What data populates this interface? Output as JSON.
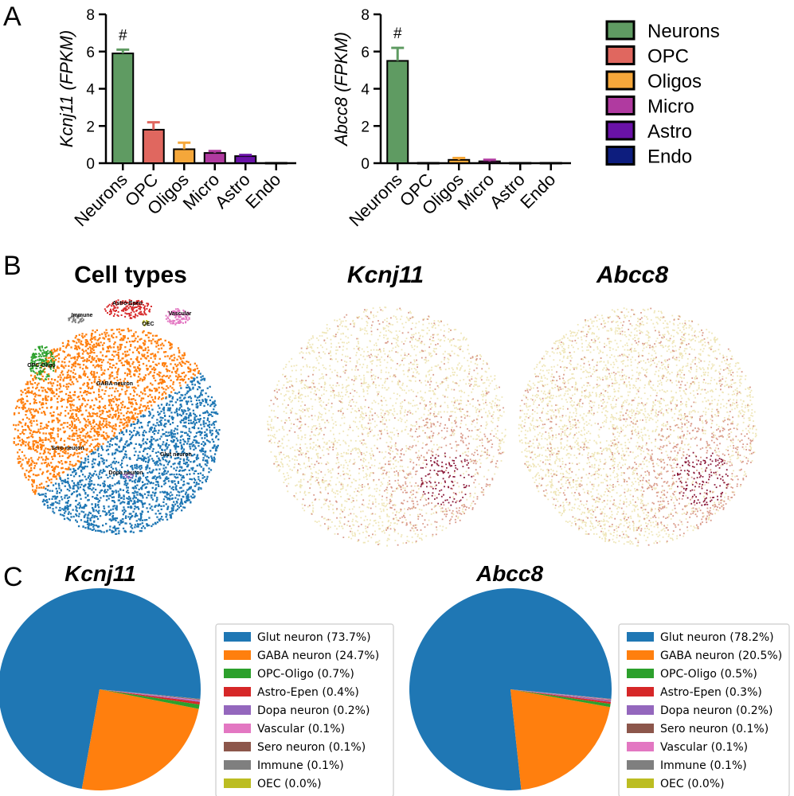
{
  "panel_labels": [
    "A",
    "B",
    "C"
  ],
  "colors": {
    "Neurons": "#5f9b62",
    "OPC": "#e0675f",
    "Oligos": "#f5a73a",
    "Micro": "#b03aa0",
    "Astro": "#6a12a8",
    "Endo": "#0d1d7e",
    "glut": "#1f77b4",
    "gaba": "#ff7f0e",
    "opc_oligo": "#2ca02c",
    "astro_epen": "#d62728",
    "dopa": "#9467bd",
    "sero": "#8c564b",
    "vascular": "#e377c2",
    "immune": "#7f7f7f",
    "oec": "#bcbd22"
  },
  "legend_A": [
    "Neurons",
    "OPC",
    "Oligos",
    "Micro",
    "Astro",
    "Endo"
  ],
  "panel_B": {
    "titles": [
      "Cell types",
      "Kcnj11",
      "Abcc8"
    ],
    "cluster_labels": [
      "Astro-Epen",
      "Immune",
      "OEC",
      "Vascular",
      "OPC-Oligo",
      "GABA neuron",
      "Sero neuron",
      "Glut neuron",
      "Dopa neuron"
    ]
  },
  "chart_data": [
    {
      "type": "bar",
      "title": "",
      "ylabel": "Kcnj11 (FPKM)",
      "xlabel": "",
      "categories": [
        "Neurons",
        "OPC",
        "Oligos",
        "Micro",
        "Astro",
        "Endo"
      ],
      "values": [
        5.9,
        1.8,
        0.75,
        0.55,
        0.38,
        0.02
      ],
      "errors": [
        0.2,
        0.4,
        0.35,
        0.1,
        0.06,
        0.0
      ],
      "ylim": [
        0,
        8
      ],
      "yticks": [
        0,
        2,
        4,
        6,
        8
      ],
      "annotation": "#"
    },
    {
      "type": "bar",
      "title": "",
      "ylabel": "Abcc8 (FPKM)",
      "xlabel": "",
      "categories": [
        "Neurons",
        "OPC",
        "Oligos",
        "Micro",
        "Astro",
        "Endo"
      ],
      "values": [
        5.5,
        0.02,
        0.18,
        0.1,
        0.02,
        0.02
      ],
      "errors": [
        0.7,
        0.0,
        0.1,
        0.08,
        0.0,
        0.0
      ],
      "ylim": [
        0,
        8
      ],
      "yticks": [
        0,
        2,
        4,
        6,
        8
      ],
      "annotation": "#"
    },
    {
      "type": "pie",
      "title": "Kcnj11",
      "labels": [
        "Glut neuron (73.7%)",
        "GABA neuron (24.7%)",
        "OPC-Oligo (0.7%)",
        "Astro-Epen (0.4%)",
        "Dopa neuron (0.2%)",
        "Vascular (0.1%)",
        "Sero neuron (0.1%)",
        "Immune (0.1%)",
        "OEC (0.0%)"
      ],
      "values": [
        73.7,
        24.7,
        0.7,
        0.4,
        0.2,
        0.1,
        0.1,
        0.1,
        0.0
      ],
      "color_keys": [
        "glut",
        "gaba",
        "opc_oligo",
        "astro_epen",
        "dopa",
        "vascular",
        "sero",
        "immune",
        "oec"
      ]
    },
    {
      "type": "pie",
      "title": "Abcc8",
      "labels": [
        "Glut neuron (78.2%)",
        "GABA neuron (20.5%)",
        "OPC-Oligo (0.5%)",
        "Astro-Epen (0.3%)",
        "Dopa neuron (0.2%)",
        "Sero neuron (0.1%)",
        "Vascular (0.1%)",
        "Immune (0.1%)",
        "OEC (0.0%)"
      ],
      "values": [
        78.2,
        20.5,
        0.5,
        0.3,
        0.2,
        0.1,
        0.1,
        0.1,
        0.0
      ],
      "color_keys": [
        "glut",
        "gaba",
        "opc_oligo",
        "astro_epen",
        "dopa",
        "sero",
        "vascular",
        "immune",
        "oec"
      ]
    }
  ]
}
